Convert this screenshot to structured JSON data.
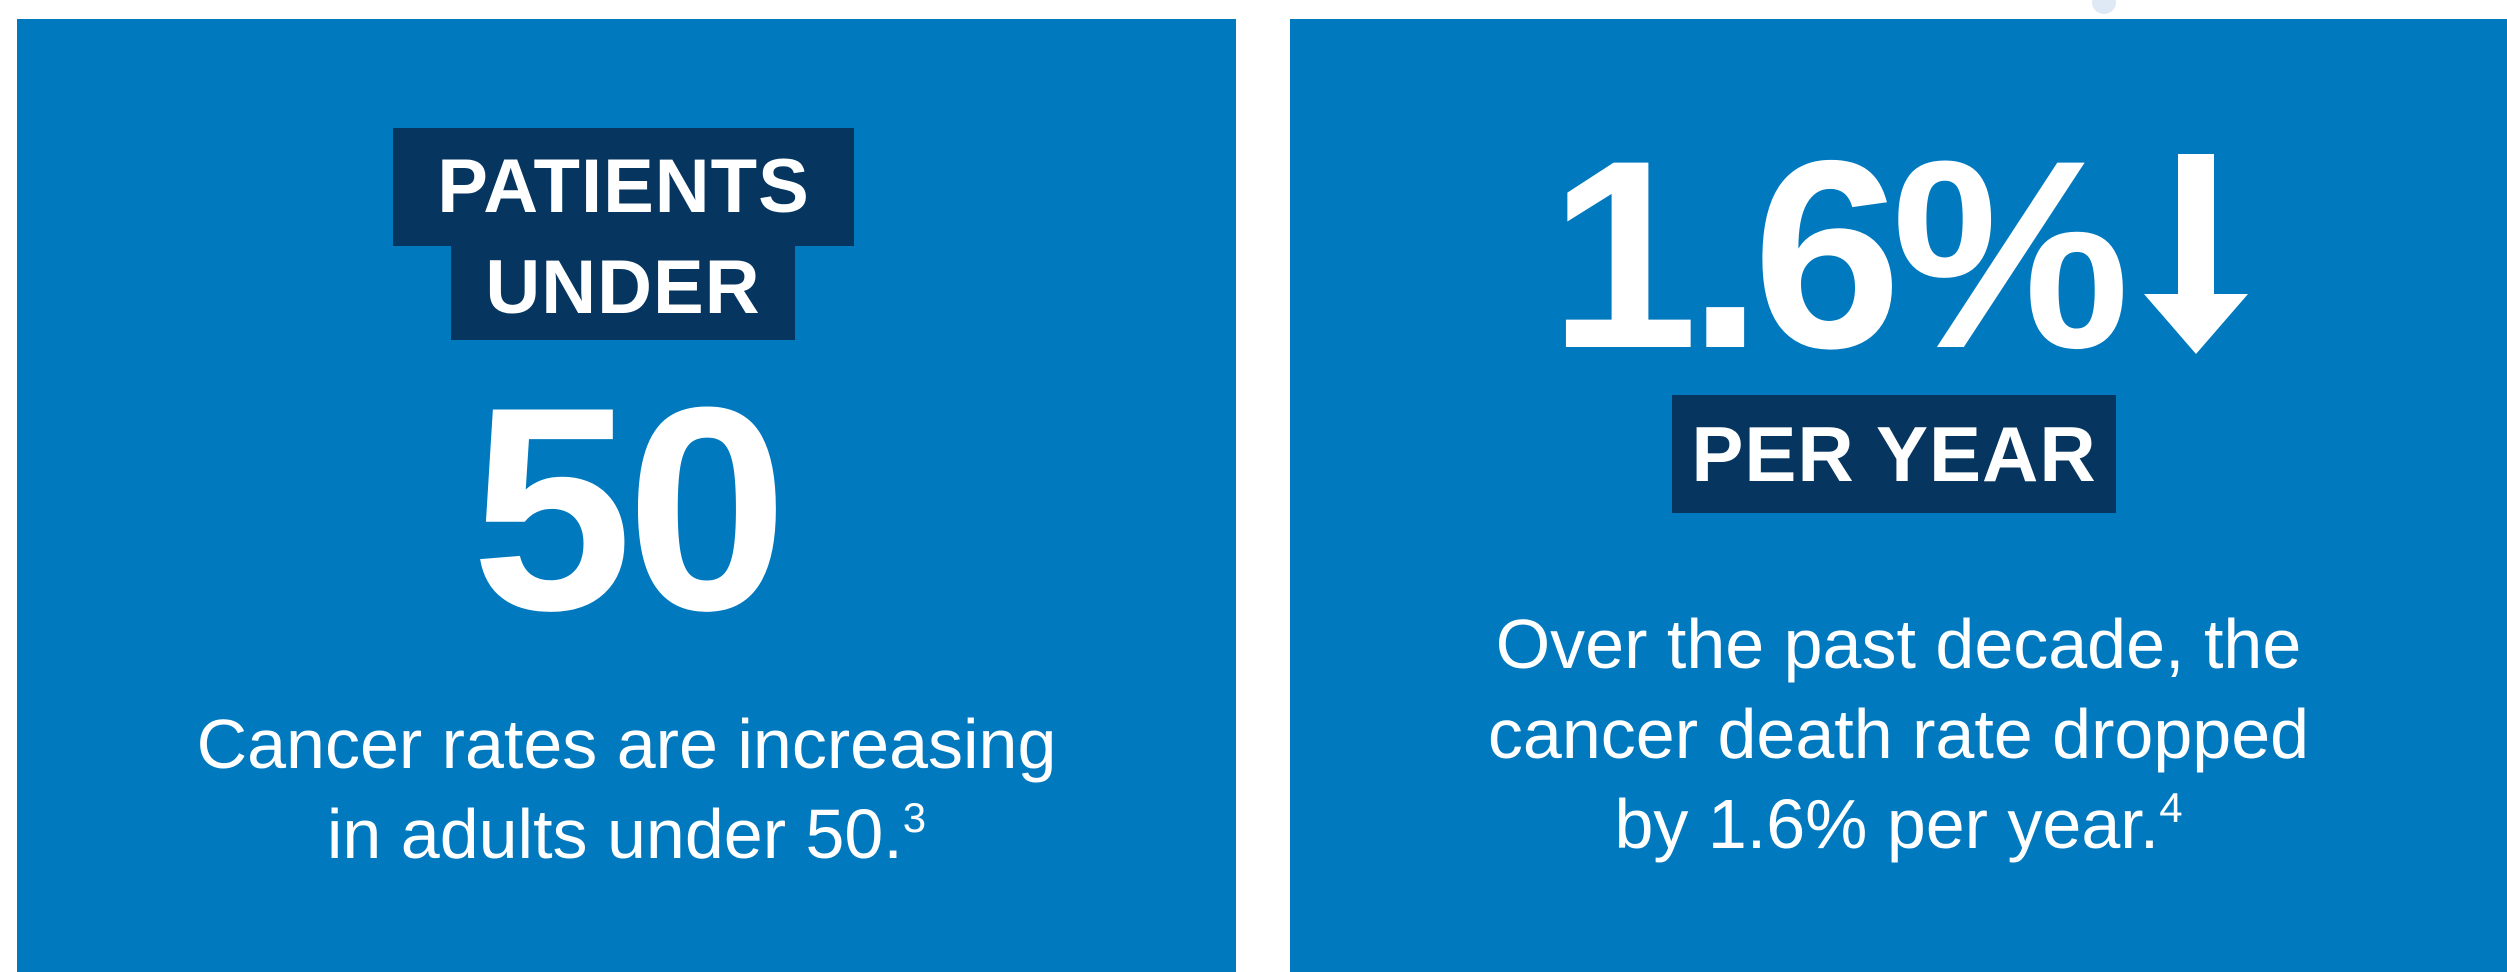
{
  "left_card": {
    "tag_line1": "PATIENTS",
    "tag_line2": "UNDER",
    "number": "50",
    "caption_line1": "Cancer rates are increasing",
    "caption_line2": "in adults under 50.",
    "caption_footnote": "3"
  },
  "right_card": {
    "stat": "1.6%",
    "stat_icon": "down-arrow-icon",
    "tag": "PER YEAR",
    "caption_line1": "Over the past decade, the",
    "caption_line2": "cancer death rate dropped",
    "caption_line3": "by 1.6% per year.",
    "caption_footnote": "4"
  },
  "colors": {
    "card_background": "#0079bf",
    "tag_background": "#063660",
    "text": "#ffffff"
  }
}
